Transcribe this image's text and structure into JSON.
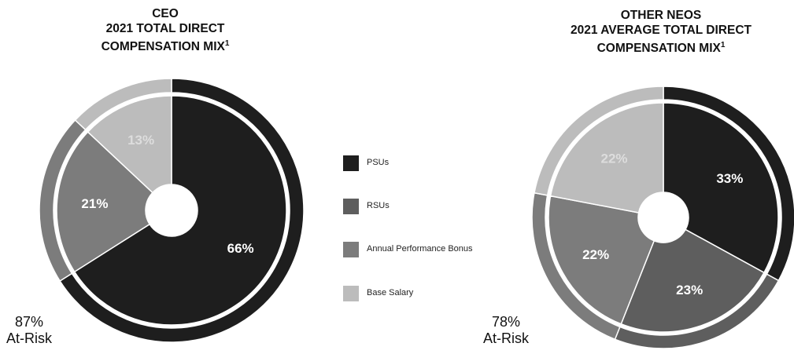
{
  "chart_data": [
    {
      "type": "pie",
      "title": [
        "CEO",
        "2021 TOTAL DIRECT",
        "COMPENSATION MIX"
      ],
      "footnote_marker": "1",
      "categories": [
        "PSUs",
        "RSUs",
        "Annual Performance Bonus",
        "Base Salary"
      ],
      "values": [
        66,
        0,
        21,
        13
      ],
      "labels": [
        "66%",
        "",
        "21%",
        "13%"
      ],
      "at_risk": {
        "value": "87%",
        "label": "At-Risk"
      }
    },
    {
      "type": "pie",
      "title": [
        "OTHER NEOS",
        "2021 AVERAGE TOTAL DIRECT",
        "COMPENSATION MIX"
      ],
      "footnote_marker": "1",
      "categories": [
        "PSUs",
        "RSUs",
        "Annual Performance Bonus",
        "Base Salary"
      ],
      "values": [
        33,
        23,
        22,
        22
      ],
      "labels": [
        "33%",
        "23%",
        "22%",
        "22%"
      ],
      "at_risk": {
        "value": "78%",
        "label": "At-Risk"
      }
    }
  ],
  "legend": [
    {
      "label": "PSUs",
      "color": "#1e1e1e"
    },
    {
      "label": "RSUs",
      "color": "#5e5e5e"
    },
    {
      "label": "Annual Performance Bonus",
      "color": "#7c7c7c"
    },
    {
      "label": "Base Salary",
      "color": "#bcbcbc"
    }
  ],
  "colors": {
    "psu": "#1e1e1e",
    "rsu": "#5e5e5e",
    "bonus": "#7c7c7c",
    "salary": "#bcbcbc",
    "divider": "#ffffff",
    "label_light": "#ffffff",
    "label_dark": "#dddddd"
  }
}
